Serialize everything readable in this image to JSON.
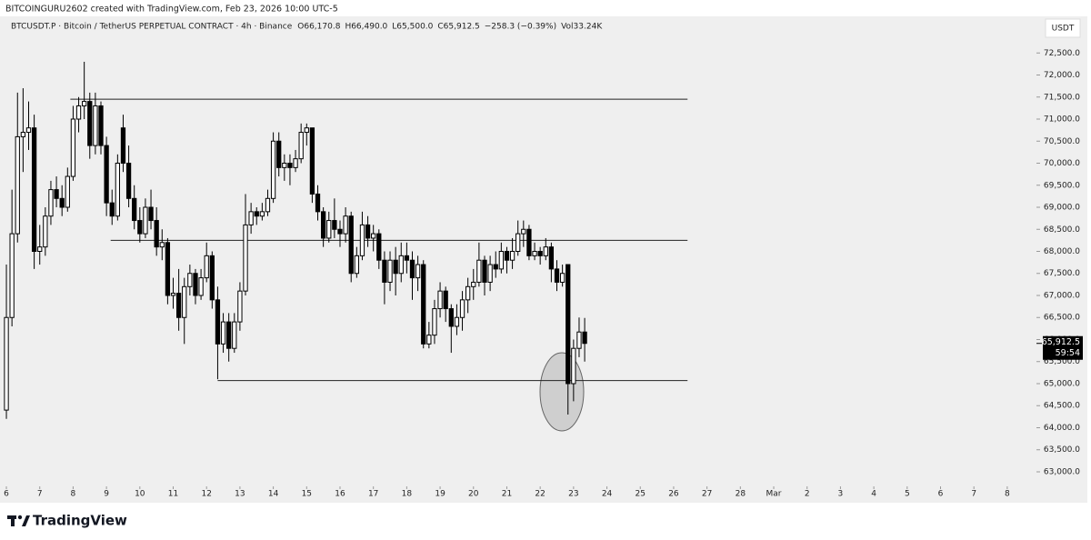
{
  "chart_data": {
    "type": "candlestick",
    "attribution": "BITCOINGURU2602 created with TradingView.com, Feb 23, 2026 10:00 UTC-5",
    "symbol": "BTCUSDT.P · Bitcoin / TetherUS PERPETUAL CONTRACT · 4h · Binance",
    "quote": [
      "O66,170.8",
      "H66,490.0",
      "L65,500.0",
      "C65,912.5",
      "−258.3 (−0.39%)",
      "Vol33.24K"
    ],
    "currency": "USDT",
    "brand": "TradingView",
    "up_color": "#ffffff",
    "down_color": "#000000",
    "xlim": [
      -4.6,
      741
    ],
    "ylim": [
      62670,
      73330
    ],
    "xticks": [
      {
        "value": 0,
        "label": "6"
      },
      {
        "value": 24,
        "label": "7"
      },
      {
        "value": 48,
        "label": "8"
      },
      {
        "value": 72,
        "label": "9"
      },
      {
        "value": 96,
        "label": "10"
      },
      {
        "value": 120,
        "label": "11"
      },
      {
        "value": 144,
        "label": "12"
      },
      {
        "value": 168,
        "label": "13"
      },
      {
        "value": 192,
        "label": "14"
      },
      {
        "value": 216,
        "label": "15"
      },
      {
        "value": 240,
        "label": "16"
      },
      {
        "value": 264,
        "label": "17"
      },
      {
        "value": 288,
        "label": "18"
      },
      {
        "value": 312,
        "label": "19"
      },
      {
        "value": 336,
        "label": "20"
      },
      {
        "value": 360,
        "label": "21"
      },
      {
        "value": 384,
        "label": "22"
      },
      {
        "value": 408,
        "label": "23"
      },
      {
        "value": 432,
        "label": "24"
      },
      {
        "value": 456,
        "label": "25"
      },
      {
        "value": 480,
        "label": "26"
      },
      {
        "value": 504,
        "label": "27"
      },
      {
        "value": 528,
        "label": "28"
      },
      {
        "value": 552,
        "label": "Mar"
      },
      {
        "value": 576,
        "label": "2"
      },
      {
        "value": 600,
        "label": "3"
      },
      {
        "value": 624,
        "label": "4"
      },
      {
        "value": 648,
        "label": "5"
      },
      {
        "value": 672,
        "label": "6"
      },
      {
        "value": 696,
        "label": "7"
      },
      {
        "value": 720,
        "label": "8"
      }
    ],
    "yticks": [
      {
        "value": 63000,
        "label": "63,000.0"
      },
      {
        "value": 63500,
        "label": "63,500.0"
      },
      {
        "value": 64000,
        "label": "64,000.0"
      },
      {
        "value": 64500,
        "label": "64,500.0"
      },
      {
        "value": 65000,
        "label": "65,000.0"
      },
      {
        "value": 65500,
        "label": "65,500.0"
      },
      {
        "value": 66000,
        "label": "66,000.0"
      },
      {
        "value": 66500,
        "label": "66,500.0"
      },
      {
        "value": 67000,
        "label": "67,000.0"
      },
      {
        "value": 67500,
        "label": "67,500.0"
      },
      {
        "value": 68000,
        "label": "68,000.0"
      },
      {
        "value": 68500,
        "label": "68,500.0"
      },
      {
        "value": 69000,
        "label": "69,000.0"
      },
      {
        "value": 69500,
        "label": "69,500.0"
      },
      {
        "value": 70000,
        "label": "70,000.0"
      },
      {
        "value": 70500,
        "label": "70,500.0"
      },
      {
        "value": 71000,
        "label": "71,000.0"
      },
      {
        "value": 71500,
        "label": "71,500.0"
      },
      {
        "value": 72000,
        "label": "72,000.0"
      },
      {
        "value": 72500,
        "label": "72,500.0"
      }
    ],
    "price_label": {
      "value": 65912.5,
      "label": "65,912.5"
    },
    "countdown": "59:54",
    "levels": [
      {
        "value": 71450,
        "x": [
          46,
          490
        ]
      },
      {
        "value": 68250,
        "x": [
          75,
          490
        ]
      },
      {
        "value": 65070,
        "x": [
          152,
          490
        ]
      }
    ],
    "x": [
      0,
      4,
      8,
      12,
      16,
      20,
      24,
      28,
      32,
      36,
      40,
      44,
      48,
      52,
      56,
      60,
      64,
      68,
      72,
      76,
      80,
      84,
      88,
      92,
      96,
      100,
      104,
      108,
      112,
      116,
      120,
      124,
      128,
      132,
      136,
      140,
      144,
      148,
      152,
      156,
      160,
      164,
      168,
      172,
      176,
      180,
      184,
      188,
      192,
      196,
      200,
      204,
      208,
      212,
      216,
      220,
      224,
      228,
      232,
      236,
      240,
      244,
      248,
      252,
      256,
      260,
      264,
      268,
      272,
      276,
      280,
      284,
      288,
      292,
      296,
      300,
      304,
      308,
      312,
      316,
      320,
      324,
      328,
      332,
      336,
      340,
      344,
      348,
      352,
      356,
      360,
      364,
      368,
      372,
      376,
      380,
      384,
      388,
      392,
      396,
      400,
      404,
      408,
      412,
      416
    ],
    "ohlc": [
      [
        64400,
        67700,
        64200,
        66500
      ],
      [
        66500,
        69400,
        66300,
        68400
      ],
      [
        68400,
        71600,
        68200,
        70600
      ],
      [
        70600,
        71700,
        69800,
        70700
      ],
      [
        70700,
        71400,
        70300,
        70800
      ],
      [
        70800,
        71100,
        67600,
        68000
      ],
      [
        68000,
        68600,
        67700,
        68100
      ],
      [
        68100,
        69000,
        67900,
        68800
      ],
      [
        68800,
        69600,
        68600,
        69400
      ],
      [
        69400,
        69700,
        69000,
        69200
      ],
      [
        69200,
        69500,
        68800,
        69000
      ],
      [
        69000,
        69900,
        68900,
        69700
      ],
      [
        69700,
        71300,
        69600,
        71000
      ],
      [
        71000,
        71500,
        70700,
        71300
      ],
      [
        71300,
        72300,
        71000,
        71400
      ],
      [
        71400,
        71600,
        70100,
        70400
      ],
      [
        70400,
        71600,
        70200,
        71300
      ],
      [
        71300,
        71400,
        70200,
        70400
      ],
      [
        70400,
        70600,
        68800,
        69100
      ],
      [
        69100,
        69400,
        68600,
        68800
      ],
      [
        68800,
        70200,
        68700,
        70000
      ],
      [
        70800,
        71100,
        69800,
        70000
      ],
      [
        70000,
        70400,
        69000,
        69200
      ],
      [
        69200,
        69500,
        68500,
        68700
      ],
      [
        68700,
        69000,
        68200,
        68400
      ],
      [
        68400,
        69200,
        68300,
        69000
      ],
      [
        69000,
        69400,
        68500,
        68700
      ],
      [
        68700,
        69000,
        67900,
        68100
      ],
      [
        68100,
        68500,
        67800,
        68200
      ],
      [
        68200,
        68300,
        66800,
        67000
      ],
      [
        67000,
        67400,
        66700,
        67050
      ],
      [
        67050,
        67600,
        66200,
        66500
      ],
      [
        66500,
        67400,
        65900,
        67200
      ],
      [
        67200,
        67700,
        67000,
        67500
      ],
      [
        67500,
        67600,
        66800,
        67000
      ],
      [
        67000,
        67600,
        66900,
        67400
      ],
      [
        67400,
        68200,
        67300,
        67900
      ],
      [
        67900,
        68000,
        66700,
        66900
      ],
      [
        66900,
        67200,
        65100,
        65900
      ],
      [
        65900,
        66600,
        65700,
        66400
      ],
      [
        66400,
        66600,
        65500,
        65800
      ],
      [
        65800,
        66600,
        65700,
        66400
      ],
      [
        66400,
        67300,
        66200,
        67100
      ],
      [
        67100,
        69300,
        67000,
        68600
      ],
      [
        68600,
        69100,
        68400,
        68900
      ],
      [
        68900,
        69000,
        68600,
        68800
      ],
      [
        68800,
        69100,
        68700,
        68900
      ],
      [
        68900,
        69400,
        68800,
        69200
      ],
      [
        69200,
        70700,
        69100,
        70500
      ],
      [
        70500,
        70700,
        69700,
        69900
      ],
      [
        69900,
        70200,
        69600,
        70000
      ],
      [
        70000,
        70200,
        69500,
        69900
      ],
      [
        69900,
        70300,
        69800,
        70100
      ],
      [
        70100,
        70900,
        70000,
        70700
      ],
      [
        70700,
        70900,
        70400,
        70800
      ],
      [
        70800,
        70800,
        69100,
        69300
      ],
      [
        69300,
        69500,
        68700,
        68900
      ],
      [
        68900,
        69000,
        68100,
        68300
      ],
      [
        68300,
        68900,
        68200,
        68700
      ],
      [
        68700,
        69200,
        68300,
        68500
      ],
      [
        68500,
        68700,
        68100,
        68400
      ],
      [
        68400,
        69000,
        68200,
        68800
      ],
      [
        68800,
        68900,
        67300,
        67500
      ],
      [
        67500,
        68100,
        67400,
        67900
      ],
      [
        67900,
        68900,
        67800,
        68600
      ],
      [
        68600,
        68800,
        68100,
        68300
      ],
      [
        68300,
        68600,
        68000,
        68400
      ],
      [
        68400,
        68500,
        67600,
        67800
      ],
      [
        67800,
        68000,
        66800,
        67300
      ],
      [
        67300,
        68000,
        67100,
        67800
      ],
      [
        67800,
        68100,
        67000,
        67500
      ],
      [
        67500,
        68200,
        67300,
        67900
      ],
      [
        67900,
        68200,
        67500,
        67800
      ],
      [
        67800,
        68000,
        66900,
        67400
      ],
      [
        67400,
        67900,
        67100,
        67700
      ],
      [
        67700,
        67800,
        65800,
        65900
      ],
      [
        65900,
        66400,
        65800,
        66100
      ],
      [
        66100,
        66900,
        65900,
        66700
      ],
      [
        66700,
        67300,
        66500,
        67100
      ],
      [
        67100,
        67200,
        66400,
        66700
      ],
      [
        66700,
        66800,
        65700,
        66300
      ],
      [
        66300,
        66800,
        66100,
        66500
      ],
      [
        66500,
        67100,
        66200,
        66900
      ],
      [
        66900,
        67400,
        66600,
        67200
      ],
      [
        67200,
        67600,
        66900,
        67300
      ],
      [
        67300,
        68200,
        67200,
        67800
      ],
      [
        67800,
        67900,
        67000,
        67300
      ],
      [
        67300,
        67900,
        67100,
        67700
      ],
      [
        67700,
        68000,
        67400,
        67600
      ],
      [
        67600,
        68200,
        67500,
        68000
      ],
      [
        68000,
        68100,
        67500,
        67800
      ],
      [
        67800,
        68300,
        67600,
        68000
      ],
      [
        68000,
        68700,
        67900,
        68400
      ],
      [
        68400,
        68700,
        68100,
        68500
      ],
      [
        68500,
        68600,
        67800,
        67900
      ],
      [
        67900,
        68200,
        67800,
        68000
      ],
      [
        68000,
        68100,
        67700,
        67900
      ],
      [
        67900,
        68300,
        67800,
        68100
      ],
      [
        68100,
        68200,
        67300,
        67600
      ],
      [
        67600,
        67800,
        67100,
        67300
      ],
      [
        67300,
        67700,
        67200,
        67500
      ],
      [
        67700,
        67700,
        64300,
        65000
      ],
      [
        65000,
        66000,
        64600,
        65800
      ],
      [
        65800,
        66500,
        65600,
        66170.8
      ],
      [
        66170.8,
        66490,
        65500,
        65912.5
      ]
    ]
  }
}
